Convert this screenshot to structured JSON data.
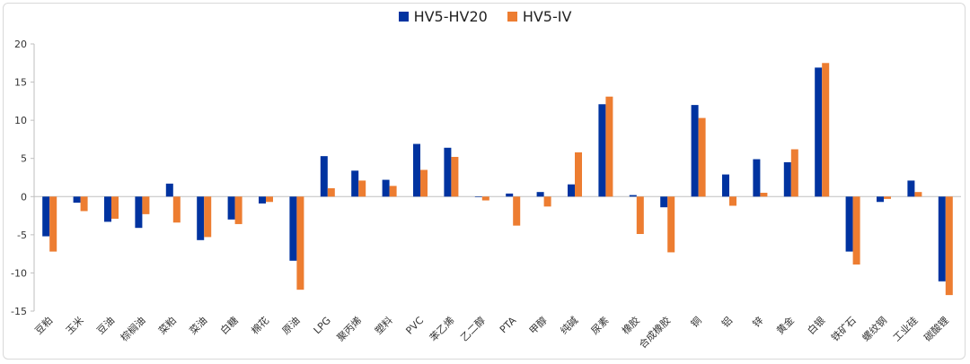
{
  "chart_data": {
    "type": "bar",
    "categories": [
      "豆粕",
      "玉米",
      "豆油",
      "棕榈油",
      "菜粕",
      "菜油",
      "白糖",
      "棉花",
      "原油",
      "LPG",
      "聚丙烯",
      "塑料",
      "PVC",
      "苯乙烯",
      "乙二醇",
      "PTA",
      "甲醇",
      "纯碱",
      "尿素",
      "橡胶",
      "合成橡胶",
      "铜",
      "铝",
      "锌",
      "黄金",
      "白银",
      "铁矿石",
      "螺纹钢",
      "工业硅",
      "碳酸锂"
    ],
    "series": [
      {
        "name": "HV5-HV20",
        "color": "#0033a0",
        "values": [
          -5.2,
          -0.8,
          -3.3,
          -4.1,
          1.7,
          -5.7,
          -3.0,
          -0.9,
          -8.4,
          5.3,
          3.4,
          2.2,
          6.9,
          6.4,
          0.0,
          0.4,
          0.6,
          1.6,
          12.1,
          0.2,
          -1.4,
          12.0,
          2.9,
          4.9,
          4.5,
          16.9,
          -7.2,
          -0.7,
          2.1,
          -11.1
        ]
      },
      {
        "name": "HV5-IV",
        "color": "#ed7d31",
        "values": [
          -7.2,
          -1.9,
          -2.9,
          -2.3,
          -3.4,
          -5.3,
          -3.6,
          -0.7,
          -12.2,
          1.1,
          2.1,
          1.4,
          3.5,
          5.2,
          -0.5,
          -3.8,
          -1.3,
          5.8,
          13.1,
          -4.9,
          -7.3,
          10.3,
          -1.2,
          0.5,
          6.2,
          17.5,
          -8.9,
          -0.3,
          0.6,
          -12.9
        ]
      }
    ],
    "ylim": [
      -15,
      20
    ],
    "yticks": [
      -15,
      -10,
      -5,
      0,
      5,
      10,
      15,
      20
    ],
    "legend": "top-center",
    "grid": false
  }
}
